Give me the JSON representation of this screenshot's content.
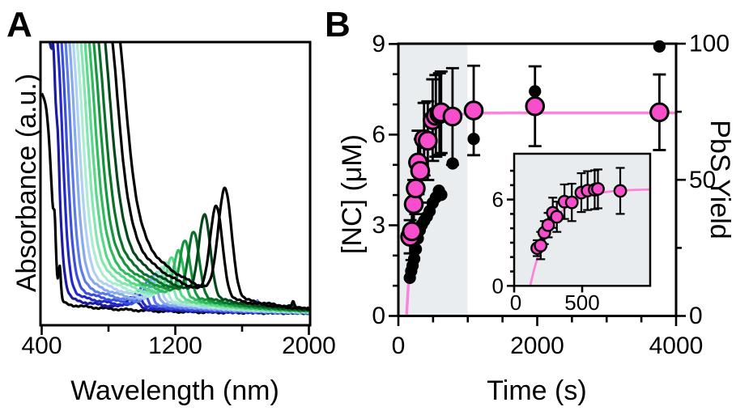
{
  "figure": {
    "panel_a_label": "A",
    "panel_b_label": "B"
  },
  "colors": {
    "nc_marker_fill": "#f74fcb",
    "nc_marker_stroke": "#000000",
    "fit_line": "#fb83dc",
    "yield_marker": "#000000",
    "shaded_region": "#e9edef",
    "inset_background": "#e8ecee"
  },
  "chart_data": [
    {
      "id": "panel_a_spectra",
      "type": "line",
      "title": "",
      "xlabel": "Wavelength (nm)",
      "ylabel": "Absorbance (a.u.)",
      "xlim": [
        400,
        2000
      ],
      "x_major_ticks": [
        400,
        1200,
        2000
      ],
      "x_major_tick_labels": [
        "400",
        "1200",
        "2000"
      ],
      "x_minor_ticks": [
        800,
        1600
      ],
      "y_axis": "arbitrary units, no ticks",
      "grid": false,
      "legend": "none",
      "description": "Absorption spectra of PbS nanocrystal growth aliquots; excitonic peak grows and red-shifts with reaction time (blue = early, green = middle, black = late).",
      "curves": [
        {
          "color": "#000000",
          "amp": 1.95,
          "mid": 462,
          "s": 15.0,
          "tail": 0.1,
          "peak": null,
          "ph": 0,
          "pw": 30,
          "wiggles": [
            [
              478,
              0.33,
              9
            ],
            [
              508,
              0.26,
              9
            ]
          ],
          "spikes": []
        },
        {
          "color": "#1b1ba0",
          "amp": 2.45,
          "mid": 500,
          "s": 16.9,
          "tail": 0.15,
          "peak": 940,
          "ph": 0.1,
          "pw": 45,
          "wiggles": [
            [
              470,
              0.22,
              8
            ],
            [
              498,
              0.18,
              8
            ]
          ],
          "spikes": []
        },
        {
          "color": "#2328cc",
          "amp": 2.8,
          "mid": 524,
          "s": 18.8,
          "tail": 0.2,
          "peak": 975,
          "ph": 0.15,
          "pw": 28,
          "wiggles": [],
          "spikes": []
        },
        {
          "color": "#3a50dd",
          "amp": 2.8,
          "mid": 548,
          "s": 20.7,
          "tail": 0.25,
          "peak": 1005,
          "ph": 0.18,
          "pw": 29,
          "wiggles": [],
          "spikes": []
        },
        {
          "color": "#5b7ce9",
          "amp": 2.8,
          "mid": 572,
          "s": 22.6,
          "tail": 0.3,
          "peak": 1035,
          "ph": 0.21,
          "pw": 31,
          "wiggles": [],
          "spikes": [
            [
              1693,
              0.1,
              4
            ]
          ]
        },
        {
          "color": "#87a9f0",
          "amp": 2.8,
          "mid": 596,
          "s": 24.5,
          "tail": 0.35,
          "peak": 1065,
          "ph": 0.24,
          "pw": 32,
          "wiggles": [],
          "spikes": []
        },
        {
          "color": "#aed0f2",
          "amp": 2.8,
          "mid": 618,
          "s": 26.4,
          "tail": 0.4,
          "peak": 1090,
          "ph": 0.26,
          "pw": 34,
          "wiggles": [],
          "spikes": []
        },
        {
          "color": "#abecd2",
          "amp": 2.8,
          "mid": 640,
          "s": 28.3,
          "tail": 0.45,
          "peak": 1118,
          "ph": 0.29,
          "pw": 35,
          "wiggles": [],
          "spikes": []
        },
        {
          "color": "#85e6b0",
          "amp": 2.8,
          "mid": 663,
          "s": 30.2,
          "tail": 0.5,
          "peak": 1148,
          "ph": 0.33,
          "pw": 37,
          "wiggles": [],
          "spikes": []
        },
        {
          "color": "#5ad98a",
          "amp": 2.8,
          "mid": 686,
          "s": 32.1,
          "tail": 0.55,
          "peak": 1178,
          "ph": 0.37,
          "pw": 39,
          "wiggles": [],
          "spikes": []
        },
        {
          "color": "#30bc5e",
          "amp": 2.8,
          "mid": 710,
          "s": 34.0,
          "tail": 0.6,
          "peak": 1221,
          "ph": 0.42,
          "pw": 41,
          "wiggles": [],
          "spikes": []
        },
        {
          "color": "#15953c",
          "amp": 2.8,
          "mid": 736,
          "s": 35.9,
          "tail": 0.65,
          "peak": 1258,
          "ph": 0.5,
          "pw": 43,
          "wiggles": [],
          "spikes": []
        },
        {
          "color": "#0b7129",
          "amp": 2.8,
          "mid": 764,
          "s": 37.8,
          "tail": 0.7,
          "peak": 1310,
          "ph": 0.58,
          "pw": 46,
          "wiggles": [],
          "spikes": []
        },
        {
          "color": "#05481b",
          "amp": 2.8,
          "mid": 800,
          "s": 39.7,
          "tail": 0.75,
          "peak": 1375,
          "ph": 0.74,
          "pw": 49,
          "wiggles": [],
          "spikes": [
            [
              1905,
              0.03,
              9
            ]
          ]
        },
        {
          "color": "#000000",
          "amp": 2.8,
          "mid": 842,
          "s": 41.6,
          "tail": 0.8,
          "peak": 1445,
          "ph": 0.82,
          "pw": 53,
          "wiggles": [],
          "spikes": []
        },
        {
          "color": "#000000",
          "amp": 2.8,
          "mid": 886,
          "s": 43.5,
          "tail": 0.85,
          "peak": 1497,
          "ph": 0.98,
          "pw": 57,
          "wiggles": [],
          "spikes": [
            [
              1905,
              0.045,
              9
            ]
          ]
        }
      ]
    },
    {
      "id": "panel_b_kinetics",
      "type": "scatter",
      "title": "",
      "xlabel": "Time (s)",
      "ylabel_left": "[NC] (μM)",
      "ylabel_right": "PbS Yield",
      "xlim": [
        0,
        4000
      ],
      "ylim_left": [
        0,
        9
      ],
      "ylim_right": [
        0,
        100
      ],
      "x_major_ticks": [
        0,
        2000,
        4000
      ],
      "x_major_tick_labels": [
        "0",
        "2000",
        "4000"
      ],
      "x_minor_ticks": [
        500,
        1000,
        1500,
        2500,
        3000,
        3500
      ],
      "y_left_major_ticks": [
        0,
        3,
        6,
        9
      ],
      "y_left_major_tick_labels": [
        "0",
        "3",
        "6",
        "9"
      ],
      "y_left_minor_ticks": [
        1,
        2,
        4,
        5,
        7,
        8
      ],
      "y_right_major_ticks": [
        0,
        50,
        100
      ],
      "y_right_major_tick_labels": [
        "0",
        "50",
        "100"
      ],
      "y_right_minor_ticks": [
        25,
        75
      ],
      "shaded_region_s": [
        0,
        1000
      ],
      "grid": false,
      "nc_series": {
        "name": "[NC] (uM), pink circles, left axis",
        "t_s": [
          170,
          195,
          222,
          250,
          284,
          314,
          370,
          424,
          494,
          540,
          592,
          616,
          780,
          1085,
          1968,
          3760
        ],
        "conc_uM": [
          2.62,
          2.8,
          3.7,
          4.22,
          5.08,
          4.8,
          5.85,
          5.8,
          6.48,
          6.62,
          6.68,
          6.74,
          6.6,
          6.8,
          6.94,
          6.74
        ],
        "err_uM": [
          0.55,
          0.95,
          0.8,
          0.85,
          1.05,
          1.05,
          1.2,
          1.3,
          1.35,
          1.35,
          1.35,
          1.35,
          1.6,
          1.48,
          1.32,
          1.25
        ]
      },
      "yield_series": {
        "name": "PbS Yield (%), black dots, right axis",
        "t_s": [
          165,
          185,
          205,
          228,
          252,
          280,
          308,
          338,
          372,
          410,
          450,
          494,
          540,
          584,
          618,
          782,
          1085,
          1968,
          3760
        ],
        "yield_pct": [
          14,
          16.5,
          18.5,
          21,
          24.5,
          28.5,
          31.5,
          33.5,
          35,
          36.5,
          38.5,
          41.5,
          43.5,
          46,
          44.5,
          56,
          65,
          82.5,
          99
        ]
      },
      "fit": {
        "model": "plateau*(1-exp(-(t-t0)/tau))",
        "plateau_uM": 6.72,
        "t0_s": 118,
        "tau_s": 158
      }
    },
    {
      "id": "panel_b_inset",
      "type": "scatter",
      "shows": "zoom of [NC] vs time over first 1000 s (same nc_series data, t <= 800 s)",
      "xlim": [
        0,
        1000
      ],
      "ylim": [
        0,
        9.2
      ],
      "x_major_ticks": [
        0,
        500
      ],
      "x_major_tick_labels": [
        "0",
        "500"
      ],
      "y_major_ticks": [
        0,
        6
      ],
      "y_major_tick_labels": [
        "0",
        "6"
      ],
      "y_minor_ticks": [
        1,
        2,
        3,
        4,
        5,
        7,
        8
      ]
    }
  ]
}
